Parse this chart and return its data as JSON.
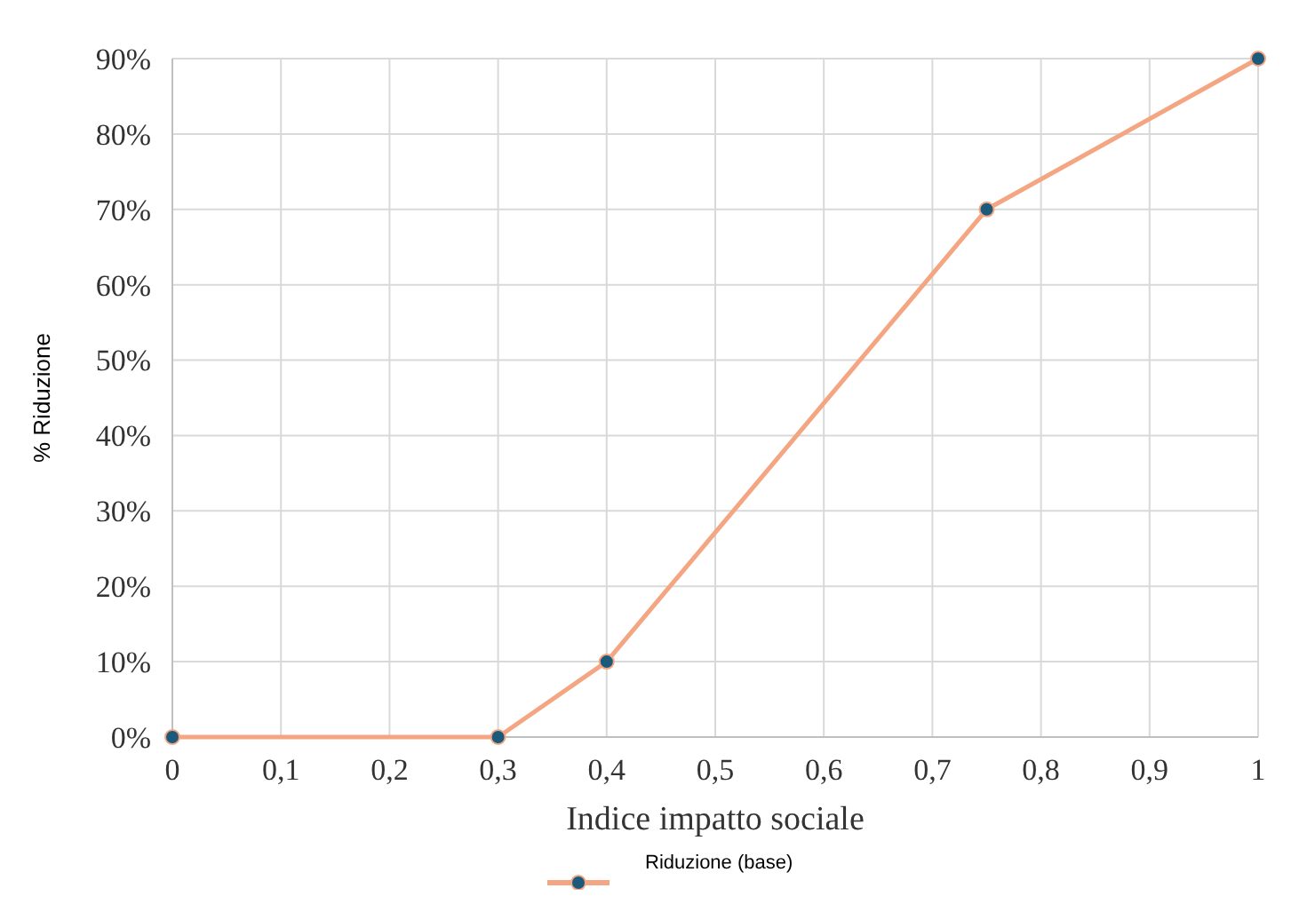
{
  "chart_data": {
    "type": "line",
    "xlabel": "Indice impatto sociale",
    "ylabel": "% Riduzione",
    "x": [
      0,
      0.3,
      0.4,
      0.75,
      1
    ],
    "series": [
      {
        "name": "Riduzione (base)",
        "color": "#f4a582",
        "values": [
          0,
          0,
          10,
          70,
          90
        ]
      }
    ],
    "xlim": [
      0,
      1
    ],
    "xticks": [
      0,
      {
        "value": 0.1,
        "label": "0,1"
      },
      {
        "value": 0.2,
        "label": "0,2"
      },
      {
        "value": 0.3,
        "label": "0,3"
      },
      {
        "value": 0.4,
        "label": "0,4"
      },
      {
        "value": 0.5,
        "label": "0,5"
      },
      {
        "value": 0.6,
        "label": "0,6"
      },
      {
        "value": 0.7,
        "label": "0,7"
      },
      {
        "value": 0.8,
        "label": "0,8"
      },
      {
        "value": 0.9,
        "label": "0,9"
      },
      1
    ],
    "ylim": [
      0,
      90
    ],
    "yticks": [
      {
        "value": 0,
        "label": "0%"
      },
      {
        "value": 10,
        "label": "10%"
      },
      {
        "value": 20,
        "label": "20%"
      },
      {
        "value": 30,
        "label": "30%"
      },
      {
        "value": 40,
        "label": "40%"
      },
      {
        "value": 50,
        "label": "50%"
      },
      {
        "value": 60,
        "label": "60%"
      },
      {
        "value": 70,
        "label": "70%"
      },
      {
        "value": 80,
        "label": "80%"
      },
      {
        "value": 90,
        "label": "90%"
      }
    ],
    "grid": true,
    "legend": "bottom",
    "marker": "circle",
    "line_style": "solid"
  }
}
